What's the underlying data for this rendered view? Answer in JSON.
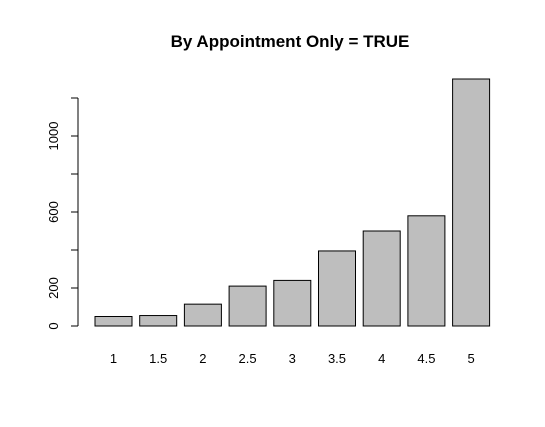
{
  "chart_data": {
    "type": "bar",
    "title": "By Appointment Only = TRUE",
    "xlabel": "",
    "ylabel": "",
    "categories": [
      "1",
      "1.5",
      "2",
      "2.5",
      "3",
      "3.5",
      "4",
      "4.5",
      "5"
    ],
    "values": [
      50,
      55,
      115,
      210,
      240,
      395,
      500,
      580,
      1300
    ],
    "yticks": [
      0,
      200,
      400,
      600,
      800,
      1000,
      1200
    ],
    "ytick_labels": [
      "0",
      "200",
      "",
      "600",
      "",
      "1000",
      ""
    ],
    "ylim": [
      0,
      1300
    ],
    "bar_color": "#bebebe",
    "grid": false,
    "legend": "none"
  }
}
